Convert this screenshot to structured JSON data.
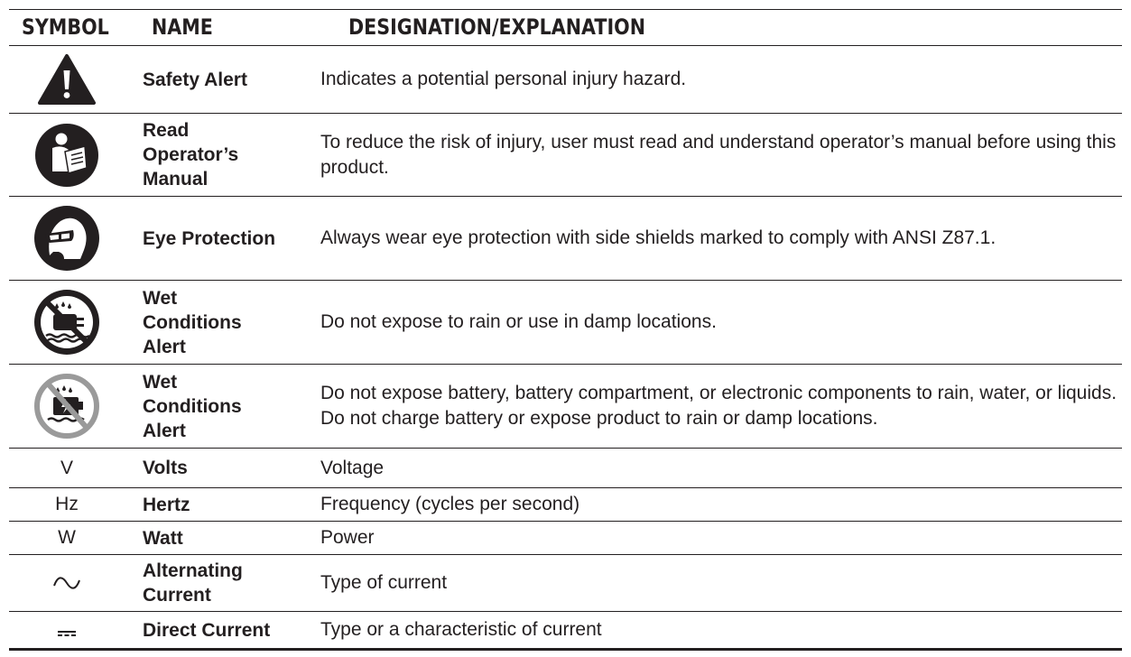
{
  "header": {
    "symbol": "SYMBOL",
    "name": "NAME",
    "designation": "DESIGNATION/EXPLANATION"
  },
  "rows": [
    {
      "symbol_icon": "safety-alert-icon",
      "name": "Safety Alert",
      "description": "Indicates a potential personal injury hazard."
    },
    {
      "symbol_icon": "read-manual-icon",
      "name": "Read Operator’s Manual",
      "description": "To reduce the risk of injury, user must read and understand operator’s manual before using this product."
    },
    {
      "symbol_icon": "eye-protection-icon",
      "name": "Eye Protection",
      "description": "Always wear eye protection with side shields marked to comply with ANSI Z87.1."
    },
    {
      "symbol_icon": "wet-conditions-icon",
      "name": "Wet Conditions Alert",
      "description": "Do not expose to rain or use in damp locations."
    },
    {
      "symbol_icon": "wet-conditions-battery-icon",
      "name": "Wet Conditions Alert",
      "description": "Do not expose battery, battery compartment, or electronic components to rain, water, or liquids. Do not charge battery or expose product to rain or damp locations."
    },
    {
      "symbol": "V",
      "name": "Volts",
      "description": "Voltage"
    },
    {
      "symbol": "Hz",
      "name": "Hertz",
      "description": "Frequency (cycles per second)"
    },
    {
      "symbol": "W",
      "name": "Watt",
      "description": "Power"
    },
    {
      "symbol_icon": "alternating-current-icon",
      "name": "Alternating Current",
      "description": "Type of current"
    },
    {
      "symbol_icon": "direct-current-icon",
      "name": "Direct Current",
      "description": "Type or a characteristic of current"
    }
  ]
}
